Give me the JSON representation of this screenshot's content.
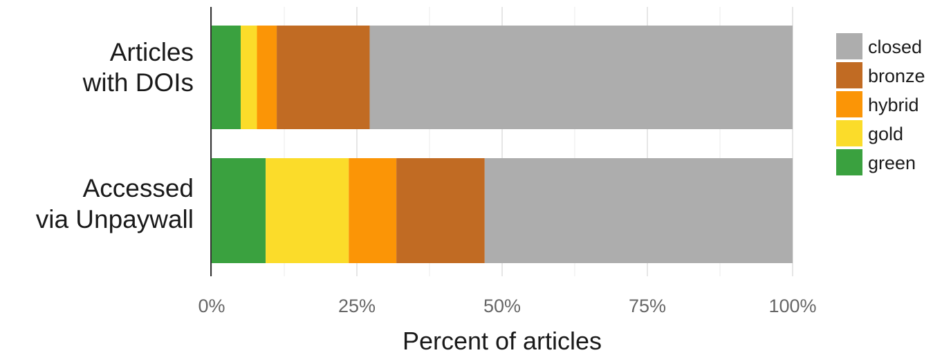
{
  "chart_data": {
    "type": "bar",
    "orientation": "horizontal",
    "stacked": true,
    "categories": [
      [
        "Articles",
        "with DOIs"
      ],
      [
        "Accessed",
        "via Unpaywall"
      ]
    ],
    "series": [
      {
        "name": "green",
        "color": "#3aa13f",
        "values": [
          5,
          9.3
        ]
      },
      {
        "name": "gold",
        "color": "#fbdc2a",
        "values": [
          2.8,
          14.3
        ]
      },
      {
        "name": "hybrid",
        "color": "#fb9506",
        "values": [
          3.4,
          8.2
        ]
      },
      {
        "name": "bronze",
        "color": "#c16b23",
        "values": [
          16,
          15.2
        ]
      },
      {
        "name": "closed",
        "color": "#adadad",
        "values": [
          72.8,
          53
        ]
      }
    ],
    "xlabel": "Percent of articles",
    "ylabel": "",
    "xlim": [
      0,
      100
    ],
    "xticks": [
      0,
      25,
      50,
      75,
      100
    ],
    "xtick_labels": [
      "0%",
      "25%",
      "50%",
      "75%",
      "100%"
    ],
    "grid": true,
    "legend": {
      "position": "right",
      "order": [
        "closed",
        "bronze",
        "hybrid",
        "gold",
        "green"
      ]
    }
  }
}
